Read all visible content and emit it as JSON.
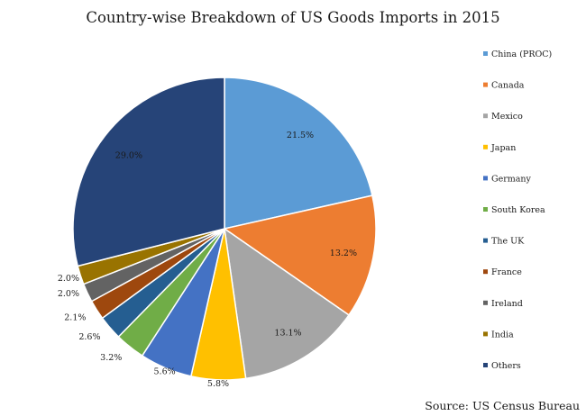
{
  "chart_data": {
    "type": "pie",
    "title": "Country-wise Breakdown of US Goods Imports in 2015",
    "source": "Source: US Census Bureau",
    "start_angle_deg": 0,
    "direction": "clockwise",
    "legend_position": "right",
    "slices": [
      {
        "label": "China (PROC)",
        "value": 21.5,
        "display": "21.5%",
        "color": "#5b9bd5"
      },
      {
        "label": "Canada",
        "value": 13.2,
        "display": "13.2%",
        "color": "#ed7d31"
      },
      {
        "label": "Mexico",
        "value": 13.1,
        "display": "13.1%",
        "color": "#a5a5a5"
      },
      {
        "label": "Japan",
        "value": 5.8,
        "display": "5.8%",
        "color": "#ffc000"
      },
      {
        "label": "Germany",
        "value": 5.6,
        "display": "5.6%",
        "color": "#4472c4"
      },
      {
        "label": "South Korea",
        "value": 3.2,
        "display": "3.2%",
        "color": "#70ad47"
      },
      {
        "label": "The UK",
        "value": 2.6,
        "display": "2.6%",
        "color": "#255e91"
      },
      {
        "label": "France",
        "value": 2.1,
        "display": "2.1%",
        "color": "#9e480e"
      },
      {
        "label": "Ireland",
        "value": 2.0,
        "display": "2.0%",
        "color": "#636363"
      },
      {
        "label": "India",
        "value": 2.0,
        "display": "2.0%",
        "color": "#997300"
      },
      {
        "label": "Others",
        "value": 29.0,
        "display": "29.0%",
        "color": "#264478"
      }
    ]
  }
}
